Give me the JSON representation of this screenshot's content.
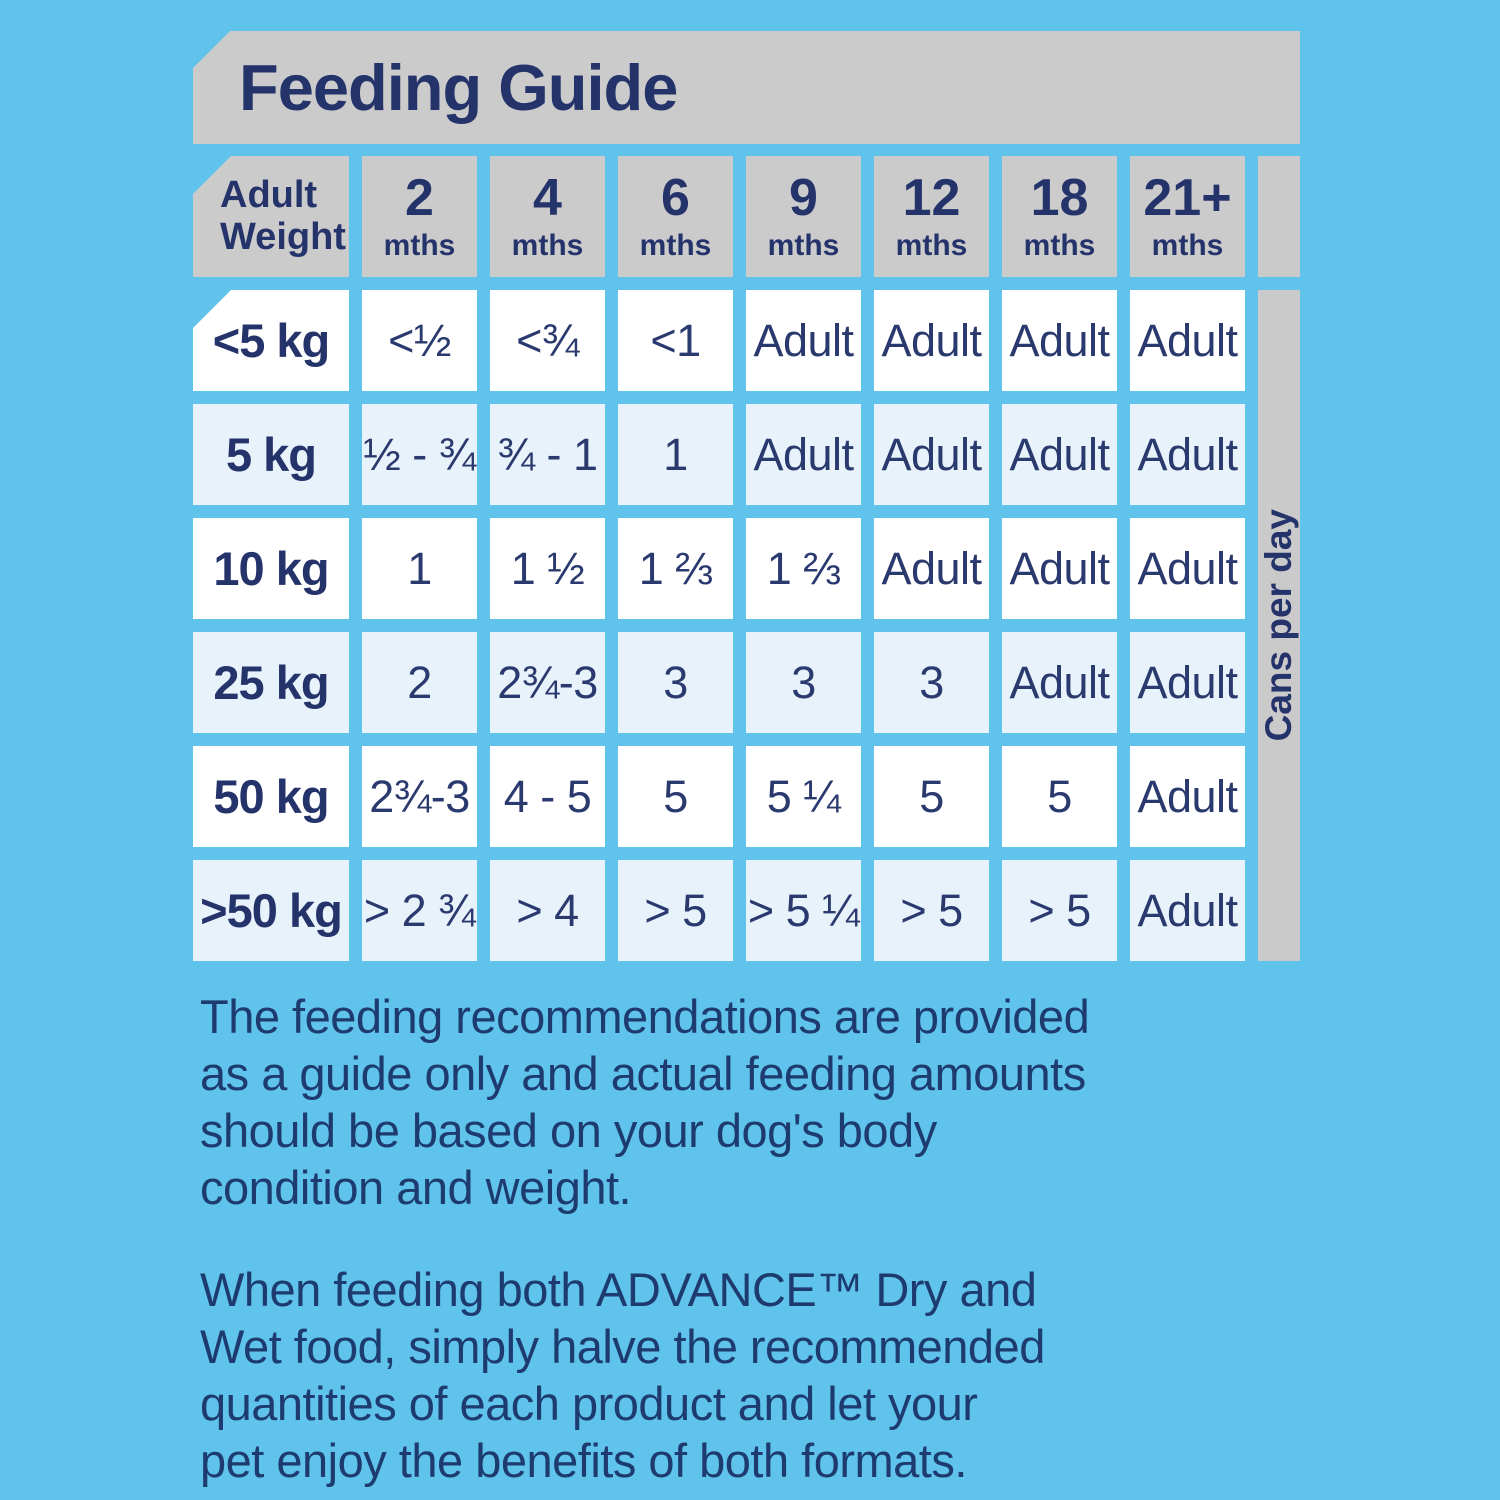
{
  "page": {
    "title": "Feeding Guide"
  },
  "table": {
    "corner_header": "Adult\nWeight",
    "columns": [
      {
        "age": "2",
        "unit": "mths"
      },
      {
        "age": "4",
        "unit": "mths"
      },
      {
        "age": "6",
        "unit": "mths"
      },
      {
        "age": "9",
        "unit": "mths"
      },
      {
        "age": "12",
        "unit": "mths"
      },
      {
        "age": "18",
        "unit": "mths"
      },
      {
        "age": "21+",
        "unit": "mths"
      }
    ],
    "side_label": "Cans per day",
    "rows": [
      {
        "weight": "<5 kg",
        "values": [
          "<½",
          "<¾",
          "<1",
          "Adult",
          "Adult",
          "Adult",
          "Adult"
        ]
      },
      {
        "weight": "5 kg",
        "values": [
          "½ - ¾",
          "¾ - 1",
          "1",
          "Adult",
          "Adult",
          "Adult",
          "Adult"
        ]
      },
      {
        "weight": "10 kg",
        "values": [
          "1",
          "1 ½",
          "1 ⅔",
          "1 ⅔",
          "Adult",
          "Adult",
          "Adult"
        ]
      },
      {
        "weight": "25 kg",
        "values": [
          "2",
          "2¾-3",
          "3",
          "3",
          "3",
          "Adult",
          "Adult"
        ]
      },
      {
        "weight": "50 kg",
        "values": [
          "2¾-3",
          "4 - 5",
          "5",
          "5 ¼",
          "5",
          "5",
          "Adult"
        ]
      },
      {
        "weight": ">50 kg",
        "values": [
          "> 2 ¾",
          "> 4",
          "> 5",
          "> 5 ¼",
          "> 5",
          "> 5",
          "Adult"
        ]
      }
    ]
  },
  "notes": [
    "The feeding recommendations are provided\nas a guide only and actual feeding amounts\nshould be based on your dog's body\ncondition and weight.",
    "When feeding both ADVANCE™ Dry and\nWet food, simply halve the recommended\nquantities of each product and let your\npet enjoy the benefits of both formats."
  ],
  "colors": {
    "background": "#5fc3ec",
    "panel_gray": "#cbcbcb",
    "cell_white": "#ffffff",
    "cell_tint": "#e8f2fb",
    "heading_navy": "#25336b",
    "body_navy": "#1e3b70"
  }
}
